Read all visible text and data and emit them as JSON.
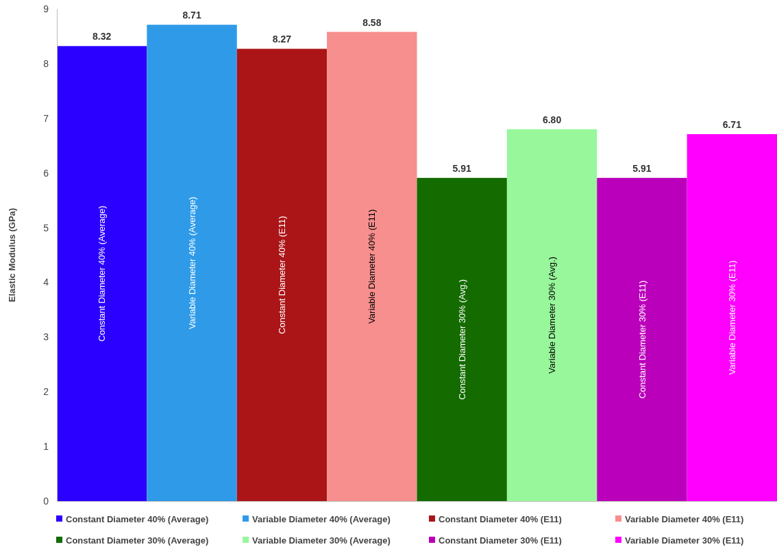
{
  "chart_data": {
    "type": "bar",
    "ylabel": "Elastic Modulus (GPa)",
    "categories": [
      null
    ],
    "series": [
      {
        "name": "Constant Diameter 40% (Average)",
        "color": "#2b00ff",
        "values": [
          8.32
        ]
      },
      {
        "name": "Variable Diameter 40% (Average)",
        "color": "#2f9be8",
        "values": [
          8.71
        ]
      },
      {
        "name": "Constant Diameter 40% (E11)",
        "color": "#ab1517",
        "values": [
          8.27
        ]
      },
      {
        "name": "Variable Diameter 40% (E11)",
        "color": "#f68f8e",
        "values": [
          8.58
        ]
      },
      {
        "name": "Constant Diameter 30% (Average)",
        "color": "#146b00",
        "values": [
          5.91
        ]
      },
      {
        "name": "Variable Diameter 30% (Average)",
        "color": "#98f79b",
        "values": [
          6.8
        ],
        "value_labels": [
          "6.80"
        ]
      },
      {
        "name": "Constant Diameter 30% (E11)",
        "color": "#bb00bb",
        "values": [
          5.91
        ]
      },
      {
        "name": "Variable Diameter 30% (E11)",
        "color": "#ff00ff",
        "values": [
          6.71
        ]
      }
    ],
    "annotations": [
      "Constant Diameter 40% (Average)",
      "Variable Diameter 40% (Average)",
      "Constant Diameter 40% (E11)",
      "Variable Diameter 40% (E11)",
      "Constant Diameter 30% (Avg.)",
      "Variable Diameter 30% (Avg.)",
      "Constant Diameter 30% (E11)",
      "Variable Diameter 30% (E11)"
    ],
    "ylim": [
      0,
      9
    ],
    "yticks": [
      0,
      1,
      2,
      3,
      4,
      5,
      6,
      7,
      8,
      9
    ],
    "data_labels": true,
    "legend": "bottom"
  }
}
